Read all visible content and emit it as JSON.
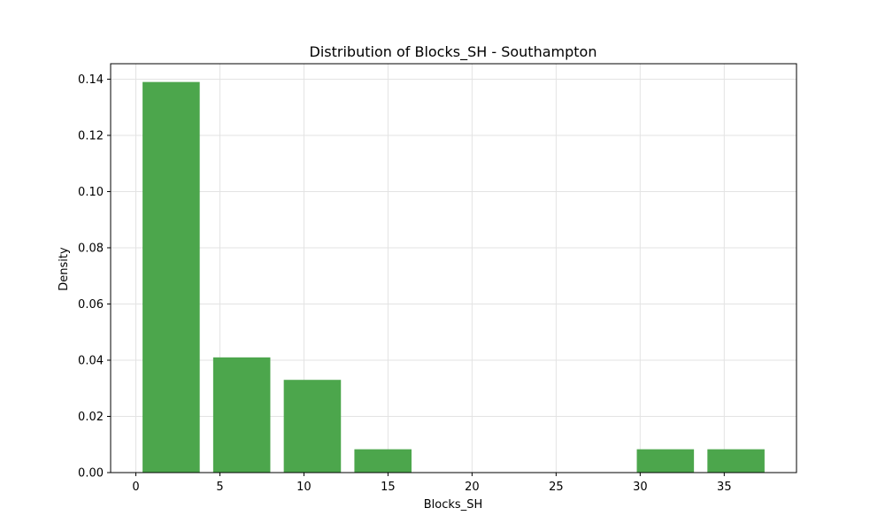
{
  "chart_data": {
    "type": "bar",
    "title": "Distribution of Blocks_SH - Southampton",
    "xlabel": "Blocks_SH",
    "ylabel": "Density",
    "xlim": [
      -1.5,
      39.3
    ],
    "ylim": [
      0,
      0.1455
    ],
    "x_ticks": [
      0,
      5,
      10,
      15,
      20,
      25,
      30,
      35
    ],
    "y_ticks": [
      0.0,
      0.02,
      0.04,
      0.06,
      0.08,
      0.1,
      0.12,
      0.14
    ],
    "y_tick_labels": [
      "0.00",
      "0.02",
      "0.04",
      "0.06",
      "0.08",
      "0.10",
      "0.12",
      "0.14"
    ],
    "grid": true,
    "color": "#4ca64c",
    "bins": [
      {
        "start": 0.4,
        "end": 3.8,
        "value": 0.139
      },
      {
        "start": 4.6,
        "end": 8.0,
        "value": 0.041
      },
      {
        "start": 8.8,
        "end": 12.2,
        "value": 0.033
      },
      {
        "start": 13.0,
        "end": 16.4,
        "value": 0.0083
      },
      {
        "start": 17.2,
        "end": 20.6,
        "value": 0.0
      },
      {
        "start": 21.4,
        "end": 24.8,
        "value": 0.0
      },
      {
        "start": 25.6,
        "end": 29.0,
        "value": 0.0
      },
      {
        "start": 29.8,
        "end": 33.2,
        "value": 0.0083
      },
      {
        "start": 34.0,
        "end": 37.4,
        "value": 0.0083
      }
    ]
  }
}
